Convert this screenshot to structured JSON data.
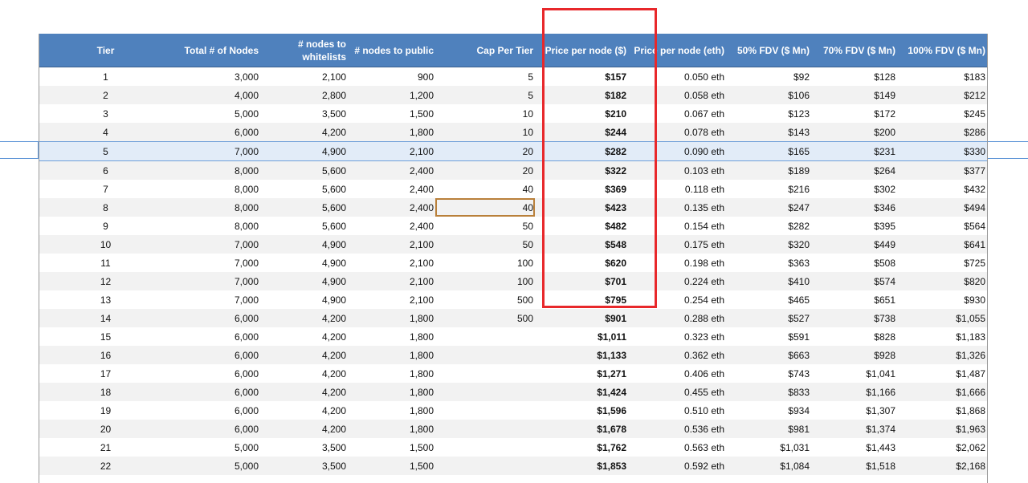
{
  "headers": [
    {
      "key": "tier",
      "label": "Tier",
      "align": "center"
    },
    {
      "key": "total_nodes",
      "label": "Total # of Nodes"
    },
    {
      "key": "nodes_whitelist",
      "label": "# nodes to whitelists"
    },
    {
      "key": "nodes_public",
      "label": "# nodes to public"
    },
    {
      "key": "cap_per_tier",
      "label": "Cap Per Tier"
    },
    {
      "key": "price_usd",
      "label": "Price per node ($)"
    },
    {
      "key": "price_eth",
      "label": "Price per node (eth)"
    },
    {
      "key": "fdv50",
      "label": "50% FDV ($ Mn)"
    },
    {
      "key": "fdv70",
      "label": "70% FDV ($ Mn)"
    },
    {
      "key": "fdv100",
      "label": "100% FDV ($ Mn)"
    }
  ],
  "rows": [
    [
      "1",
      "3,000",
      "2,100",
      "900",
      "5",
      "$157",
      "0.050 eth",
      "$92",
      "$128",
      "$183"
    ],
    [
      "2",
      "4,000",
      "2,800",
      "1,200",
      "5",
      "$182",
      "0.058 eth",
      "$106",
      "$149",
      "$212"
    ],
    [
      "3",
      "5,000",
      "3,500",
      "1,500",
      "10",
      "$210",
      "0.067 eth",
      "$123",
      "$172",
      "$245"
    ],
    [
      "4",
      "6,000",
      "4,200",
      "1,800",
      "10",
      "$244",
      "0.078 eth",
      "$143",
      "$200",
      "$286"
    ],
    [
      "5",
      "7,000",
      "4,900",
      "2,100",
      "20",
      "$282",
      "0.090 eth",
      "$165",
      "$231",
      "$330"
    ],
    [
      "6",
      "8,000",
      "5,600",
      "2,400",
      "20",
      "$322",
      "0.103 eth",
      "$189",
      "$264",
      "$377"
    ],
    [
      "7",
      "8,000",
      "5,600",
      "2,400",
      "40",
      "$369",
      "0.118 eth",
      "$216",
      "$302",
      "$432"
    ],
    [
      "8",
      "8,000",
      "5,600",
      "2,400",
      "40",
      "$423",
      "0.135 eth",
      "$247",
      "$346",
      "$494"
    ],
    [
      "9",
      "8,000",
      "5,600",
      "2,400",
      "50",
      "$482",
      "0.154 eth",
      "$282",
      "$395",
      "$564"
    ],
    [
      "10",
      "7,000",
      "4,900",
      "2,100",
      "50",
      "$548",
      "0.175 eth",
      "$320",
      "$449",
      "$641"
    ],
    [
      "11",
      "7,000",
      "4,900",
      "2,100",
      "100",
      "$620",
      "0.198 eth",
      "$363",
      "$508",
      "$725"
    ],
    [
      "12",
      "7,000",
      "4,900",
      "2,100",
      "100",
      "$701",
      "0.224 eth",
      "$410",
      "$574",
      "$820"
    ],
    [
      "13",
      "7,000",
      "4,900",
      "2,100",
      "500",
      "$795",
      "0.254 eth",
      "$465",
      "$651",
      "$930"
    ],
    [
      "14",
      "6,000",
      "4,200",
      "1,800",
      "500",
      "$901",
      "0.288 eth",
      "$527",
      "$738",
      "$1,055"
    ],
    [
      "15",
      "6,000",
      "4,200",
      "1,800",
      "",
      "$1,011",
      "0.323 eth",
      "$591",
      "$828",
      "$1,183"
    ],
    [
      "16",
      "6,000",
      "4,200",
      "1,800",
      "",
      "$1,133",
      "0.362 eth",
      "$663",
      "$928",
      "$1,326"
    ],
    [
      "17",
      "6,000",
      "4,200",
      "1,800",
      "",
      "$1,271",
      "0.406 eth",
      "$743",
      "$1,041",
      "$1,487"
    ],
    [
      "18",
      "6,000",
      "4,200",
      "1,800",
      "",
      "$1,424",
      "0.455 eth",
      "$833",
      "$1,166",
      "$1,666"
    ],
    [
      "19",
      "6,000",
      "4,200",
      "1,800",
      "",
      "$1,596",
      "0.510 eth",
      "$934",
      "$1,307",
      "$1,868"
    ],
    [
      "20",
      "6,000",
      "4,200",
      "1,800",
      "",
      "$1,678",
      "0.536 eth",
      "$981",
      "$1,374",
      "$1,963"
    ],
    [
      "21",
      "5,000",
      "3,500",
      "1,500",
      "",
      "$1,762",
      "0.563 eth",
      "$1,031",
      "$1,443",
      "$2,062"
    ],
    [
      "22",
      "5,000",
      "3,500",
      "1,500",
      "",
      "$1,853",
      "0.592 eth",
      "$1,084",
      "$1,518",
      "$2,168"
    ]
  ],
  "selected_row_tier": "5",
  "active_cell": {
    "tier": "8",
    "column": "cap_per_tier"
  },
  "highlighted_column": "price_usd",
  "colors": {
    "header_bg": "#4f81bd",
    "stripe": "#f2f2f2",
    "selection": "#e2ecf8",
    "active_cell_border": "#b9803a",
    "highlight_box": "#e8282b"
  }
}
